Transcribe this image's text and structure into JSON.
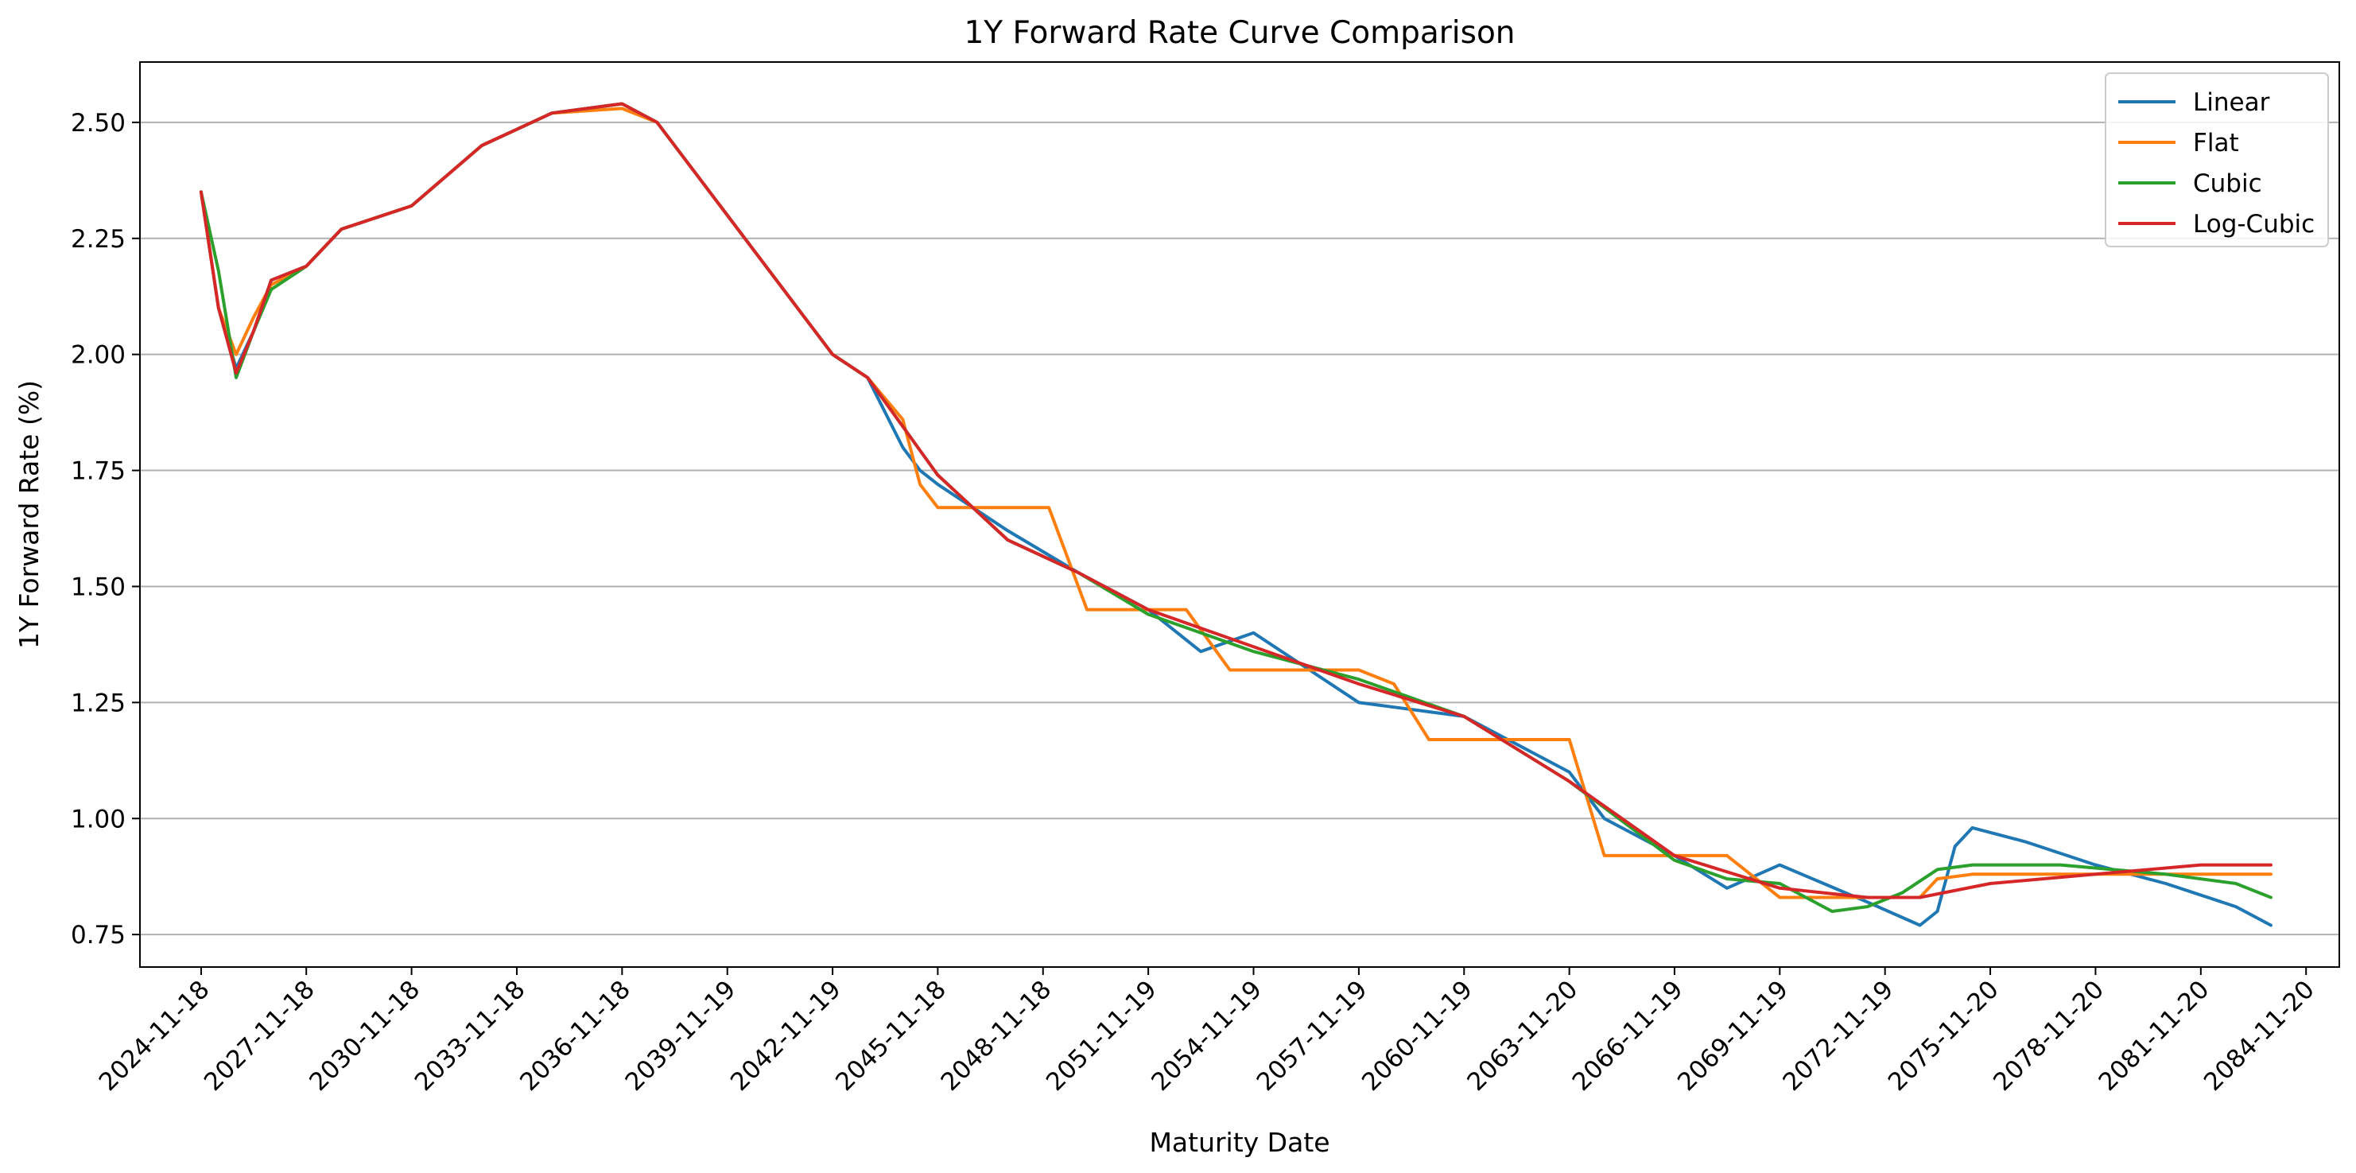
{
  "chart_data": {
    "type": "line",
    "title": "1Y Forward Rate Curve Comparison",
    "xlabel": "Maturity Date",
    "ylabel": "1Y Forward Rate (%)",
    "x_axis_type": "date",
    "xlim": [
      "2023-02-20",
      "2085-11-01"
    ],
    "ylim": [
      0.68,
      2.63
    ],
    "x_ticks": [
      "2024-11-18",
      "2027-11-18",
      "2030-11-18",
      "2033-11-18",
      "2036-11-18",
      "2039-11-19",
      "2042-11-19",
      "2045-11-18",
      "2048-11-18",
      "2051-11-19",
      "2054-11-19",
      "2057-11-19",
      "2060-11-19",
      "2063-11-20",
      "2066-11-19",
      "2069-11-19",
      "2072-11-19",
      "2075-11-20",
      "2078-11-20",
      "2081-11-20",
      "2084-11-20"
    ],
    "y_ticks": [
      "0.75",
      "1.00",
      "1.25",
      "1.50",
      "1.75",
      "2.00",
      "2.25",
      "2.50"
    ],
    "grid": "horizontal",
    "legend_position": "top-right",
    "series": [
      {
        "name": "Linear",
        "color": "#1f77b4",
        "x": [
          "2024-11-18",
          "2025-05-18",
          "2025-11-18",
          "2026-05-18",
          "2026-11-18",
          "2027-11-18",
          "2028-11-18",
          "2030-11-18",
          "2032-11-18",
          "2034-11-18",
          "2036-11-18",
          "2037-11-18",
          "2038-11-18",
          "2040-11-18",
          "2042-11-19",
          "2043-11-18",
          "2044-11-18",
          "2045-05-18",
          "2045-11-18",
          "2047-11-18",
          "2049-11-18",
          "2051-11-19",
          "2053-05-18",
          "2054-11-19",
          "2057-11-19",
          "2058-11-19",
          "2060-11-19",
          "2062-11-19",
          "2063-11-20",
          "2064-11-19",
          "2066-11-19",
          "2068-05-18",
          "2069-11-19",
          "2072-05-19",
          "2073-11-18",
          "2074-05-18",
          "2074-11-18",
          "2075-05-18",
          "2076-11-18",
          "2078-11-20",
          "2080-11-20",
          "2082-11-20",
          "2083-11-20"
        ],
        "y": [
          2.35,
          2.1,
          1.97,
          2.05,
          2.16,
          2.19,
          2.27,
          2.32,
          2.45,
          2.52,
          2.54,
          2.5,
          2.4,
          2.2,
          2.0,
          1.95,
          1.8,
          1.75,
          1.72,
          1.62,
          1.53,
          1.45,
          1.36,
          1.4,
          1.25,
          1.24,
          1.22,
          1.14,
          1.1,
          1.0,
          0.92,
          0.85,
          0.9,
          0.82,
          0.77,
          0.8,
          0.94,
          0.98,
          0.95,
          0.9,
          0.86,
          0.81,
          0.77
        ]
      },
      {
        "name": "Flat",
        "color": "#ff7f0e",
        "x": [
          "2024-11-18",
          "2025-05-18",
          "2025-11-18",
          "2026-05-18",
          "2026-11-18",
          "2027-11-18",
          "2028-11-18",
          "2030-11-18",
          "2032-11-18",
          "2034-11-18",
          "2036-11-18",
          "2037-11-18",
          "2038-11-18",
          "2040-11-18",
          "2042-11-19",
          "2043-11-18",
          "2044-11-18",
          "2045-05-18",
          "2045-11-18",
          "2049-01-18",
          "2050-02-18",
          "2052-12-18",
          "2054-03-18",
          "2057-11-19",
          "2058-11-19",
          "2059-11-19",
          "2063-11-20",
          "2064-11-19",
          "2068-05-18",
          "2069-11-19",
          "2072-05-19",
          "2073-11-18",
          "2074-05-18",
          "2075-05-18",
          "2076-11-18",
          "2083-11-20"
        ],
        "y": [
          2.35,
          2.1,
          2.0,
          2.08,
          2.15,
          2.19,
          2.27,
          2.32,
          2.45,
          2.52,
          2.53,
          2.5,
          2.4,
          2.2,
          2.0,
          1.95,
          1.86,
          1.72,
          1.67,
          1.67,
          1.45,
          1.45,
          1.32,
          1.32,
          1.29,
          1.17,
          1.17,
          0.92,
          0.92,
          0.83,
          0.83,
          0.83,
          0.87,
          0.88,
          0.88,
          0.88
        ]
      },
      {
        "name": "Cubic",
        "color": "#2ca02c",
        "x": [
          "2024-11-18",
          "2025-05-18",
          "2025-11-18",
          "2026-05-18",
          "2026-11-18",
          "2027-11-18",
          "2028-11-18",
          "2030-11-18",
          "2032-11-18",
          "2034-11-18",
          "2036-11-18",
          "2037-11-18",
          "2038-11-18",
          "2040-11-18",
          "2042-11-19",
          "2043-11-18",
          "2045-11-18",
          "2047-11-18",
          "2049-11-18",
          "2051-11-19",
          "2054-11-19",
          "2057-11-19",
          "2060-11-19",
          "2063-11-20",
          "2066-11-19",
          "2068-05-18",
          "2069-11-19",
          "2071-05-18",
          "2072-05-19",
          "2073-05-18",
          "2074-05-18",
          "2075-05-18",
          "2077-11-18",
          "2080-11-20",
          "2082-11-20",
          "2083-11-20"
        ],
        "y": [
          2.35,
          2.18,
          1.95,
          2.05,
          2.14,
          2.19,
          2.27,
          2.32,
          2.45,
          2.52,
          2.54,
          2.5,
          2.4,
          2.2,
          2.0,
          1.95,
          1.74,
          1.6,
          1.53,
          1.44,
          1.36,
          1.3,
          1.22,
          1.08,
          0.91,
          0.87,
          0.86,
          0.8,
          0.81,
          0.84,
          0.89,
          0.9,
          0.9,
          0.88,
          0.86,
          0.83
        ]
      },
      {
        "name": "Log-Cubic",
        "color": "#d62728",
        "x": [
          "2024-11-18",
          "2025-05-18",
          "2025-11-18",
          "2026-05-18",
          "2026-11-18",
          "2027-11-18",
          "2028-11-18",
          "2030-11-18",
          "2032-11-18",
          "2034-11-18",
          "2036-11-18",
          "2037-11-18",
          "2038-11-18",
          "2040-11-18",
          "2042-11-19",
          "2043-11-18",
          "2045-11-18",
          "2047-11-18",
          "2049-11-18",
          "2051-11-19",
          "2054-11-19",
          "2057-11-19",
          "2060-11-19",
          "2063-11-20",
          "2066-11-19",
          "2069-11-19",
          "2072-05-19",
          "2073-11-18",
          "2075-11-20",
          "2078-11-20",
          "2081-11-20",
          "2083-11-20"
        ],
        "y": [
          2.35,
          2.1,
          1.96,
          2.05,
          2.16,
          2.19,
          2.27,
          2.32,
          2.45,
          2.52,
          2.54,
          2.5,
          2.4,
          2.2,
          2.0,
          1.95,
          1.74,
          1.6,
          1.53,
          1.45,
          1.37,
          1.29,
          1.22,
          1.08,
          0.92,
          0.85,
          0.83,
          0.83,
          0.86,
          0.88,
          0.9,
          0.9
        ]
      }
    ]
  }
}
